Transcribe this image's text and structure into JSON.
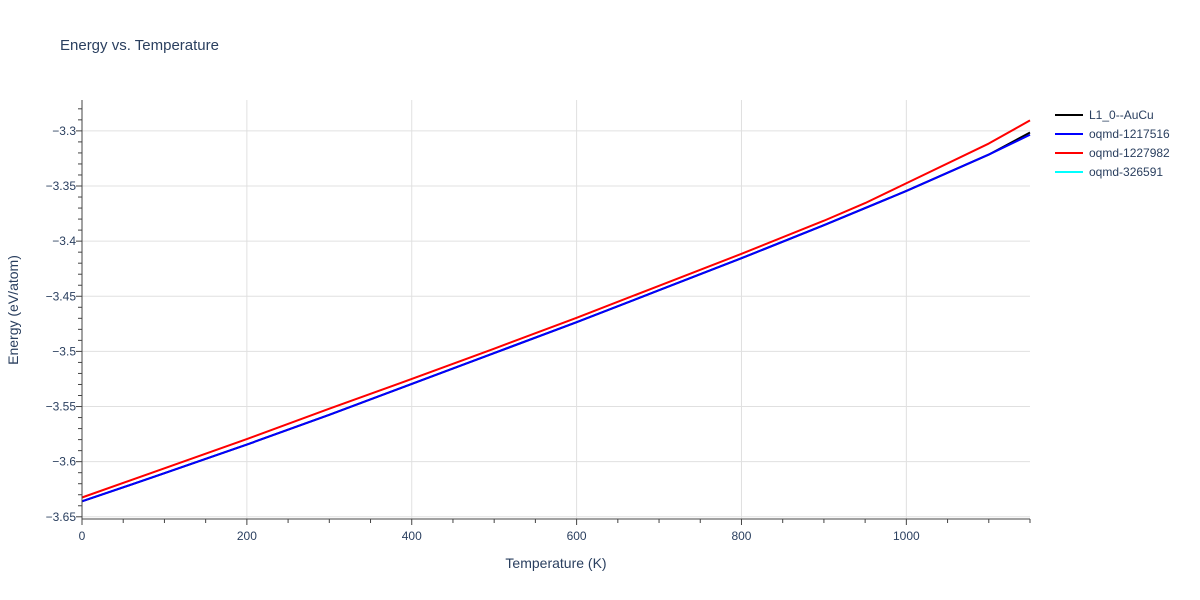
{
  "chart_data": {
    "type": "line",
    "title": "Energy vs. Temperature",
    "xlabel": "Temperature (K)",
    "ylabel": "Energy (eV/atom)",
    "xlim": [
      0,
      1150
    ],
    "ylim": [
      -3.652,
      -3.272
    ],
    "x_ticks": [
      0,
      200,
      400,
      600,
      800,
      1000
    ],
    "y_ticks": [
      -3.65,
      -3.6,
      -3.55,
      -3.5,
      -3.45,
      -3.4,
      -3.35,
      -3.3
    ],
    "y_tick_labels": [
      "−3.65",
      "−3.6",
      "−3.55",
      "−3.5",
      "−3.45",
      "−3.4",
      "−3.35",
      "−3.3"
    ],
    "grid": true,
    "legend_position": "top-right",
    "series": [
      {
        "name": "L1_0--AuCu",
        "color": "#000000",
        "x": [
          0,
          100,
          200,
          300,
          400,
          500,
          600,
          700,
          800,
          900,
          1000,
          1100,
          1150
        ],
        "y": [
          -3.636,
          -3.6105,
          -3.5845,
          -3.5575,
          -3.5295,
          -3.5015,
          -3.4735,
          -3.4445,
          -3.4155,
          -3.3855,
          -3.3545,
          -3.3215,
          -3.3015
        ]
      },
      {
        "name": "oqmd-1217516",
        "color": "#0000ff",
        "x": [
          0,
          100,
          200,
          300,
          400,
          500,
          600,
          700,
          800,
          900,
          1000,
          1100,
          1150
        ],
        "y": [
          -3.636,
          -3.6105,
          -3.5845,
          -3.5575,
          -3.5295,
          -3.5015,
          -3.4735,
          -3.4445,
          -3.4155,
          -3.3855,
          -3.3545,
          -3.3215,
          -3.3035
        ]
      },
      {
        "name": "oqmd-1227982",
        "color": "#ff0000",
        "x": [
          0,
          100,
          200,
          300,
          400,
          500,
          600,
          700,
          800,
          900,
          950,
          1000,
          1100,
          1150
        ],
        "y": [
          -3.6325,
          -3.606,
          -3.5795,
          -3.552,
          -3.525,
          -3.4975,
          -3.4695,
          -3.4405,
          -3.4115,
          -3.3815,
          -3.3655,
          -3.3475,
          -3.3115,
          -3.2905
        ]
      },
      {
        "name": "oqmd-326591",
        "color": "#00ffff",
        "x": [],
        "y": []
      }
    ]
  }
}
